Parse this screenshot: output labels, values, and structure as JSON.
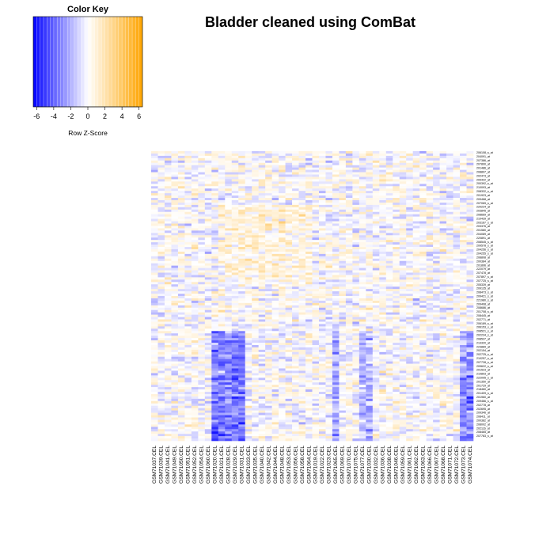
{
  "title": "Bladder cleaned using ComBat",
  "color_key": {
    "title": "Color Key",
    "xlabel": "Row Z-Score",
    "ticks": [
      "-6",
      "-4",
      "-2",
      "0",
      "2",
      "4",
      "6"
    ],
    "range": [
      -6.4,
      6.4
    ],
    "low_color": "#0000ff",
    "mid_color": "#ffffff",
    "high_color": "#ffa500"
  },
  "chart_data": {
    "type": "heatmap",
    "title": "Bladder cleaned using ComBat",
    "scale": "Row Z-Score",
    "columns": [
      "GSM71037.CEL",
      "GSM71039.CEL",
      "GSM71041.CEL",
      "GSM71049.CEL",
      "GSM71050.CEL",
      "GSM71051.CEL",
      "GSM71052.CEL",
      "GSM71054.CEL",
      "GSM71060.CEL",
      "GSM71020.CEL",
      "GSM71021.CEL",
      "GSM71028.CEL",
      "GSM71029.CEL",
      "GSM71031.CEL",
      "GSM71033.CEL",
      "GSM71035.CEL",
      "GSM71040.CEL",
      "GSM71042.CEL",
      "GSM71044.CEL",
      "GSM71048.CEL",
      "GSM71053.CEL",
      "GSM71056.CEL",
      "GSM71058.CEL",
      "GSM71064.CEL",
      "GSM71019.CEL",
      "GSM71022.CEL",
      "GSM71023.CEL",
      "GSM71065.CEL",
      "GSM71069.CEL",
      "GSM71070.CEL",
      "GSM71075.CEL",
      "GSM71077.CEL",
      "GSM71030.CEL",
      "GSM71032.CEL",
      "GSM71036.CEL",
      "GSM71038.CEL",
      "GSM71046.CEL",
      "GSM71059.CEL",
      "GSM71061.CEL",
      "GSM71062.CEL",
      "GSM71063.CEL",
      "GSM71066.CEL",
      "GSM71067.CEL",
      "GSM71068.CEL",
      "GSM71071.CEL",
      "GSM71072.CEL",
      "GSM71073.CEL",
      "GSM71074.CEL"
    ],
    "row_labels": [
      "206108_s_at",
      "204091_at",
      "207386_at",
      "207890_at",
      "201486_at",
      "208897_at",
      "202473_at",
      "209422_at",
      "200392_s_at",
      "210093_at",
      "208332_s_at",
      "201923_at",
      "209468_at",
      "207069_s_at",
      "220224_at",
      "203845_at",
      "208669_at",
      "210439_at",
      "203167_s_at",
      "203376_at",
      "201580_at",
      "204089_at",
      "220891_at",
      "208545_s_at",
      "209578_s_at",
      "204256_s_at",
      "204255_s_at",
      "208808_at",
      "200384_at",
      "201896_at",
      "222079_at",
      "207478_at",
      "207897_s_at",
      "207725_s_at",
      "205339_at",
      "209135_at",
      "208473_s_at",
      "209421_s_at",
      "221980_s_at",
      "209408_at",
      "208686_at",
      "201708_s_at",
      "208445_at",
      "202771_at",
      "206189_s_at",
      "206153_x_at",
      "208521_s_at",
      "202234_s_at",
      "208537_at",
      "213320_at",
      "223889_at",
      "202154_at",
      "202725_s_at",
      "210257_s_at",
      "207728_s_at",
      "209622_s_at",
      "201523_at",
      "210893_at",
      "222095_s_at",
      "201350_at",
      "201729_at",
      "218460_at",
      "201409_s_at",
      "201960_at",
      "209466_s_at",
      "202778_at",
      "202695_at",
      "209346_at",
      "208411_at",
      "200382_at",
      "208002_at",
      "202116_at",
      "208465_at",
      "207783_s_at"
    ],
    "row_count": 124,
    "zlim": [
      -6.4,
      6.4
    ]
  }
}
